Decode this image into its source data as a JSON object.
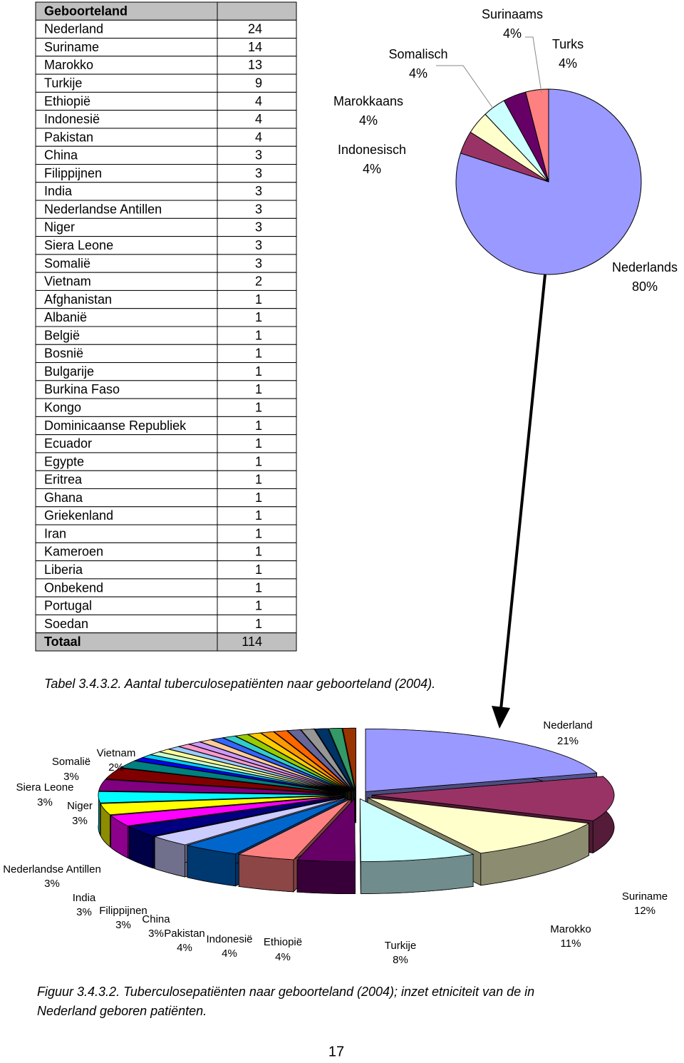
{
  "table": {
    "header": "Geboorteland",
    "rows": [
      [
        "Nederland",
        24
      ],
      [
        "Suriname",
        14
      ],
      [
        "Marokko",
        13
      ],
      [
        "Turkije",
        9
      ],
      [
        "Ethiopië",
        4
      ],
      [
        "Indonesië",
        4
      ],
      [
        "Pakistan",
        4
      ],
      [
        "China",
        3
      ],
      [
        "Filippijnen",
        3
      ],
      [
        "India",
        3
      ],
      [
        "Nederlandse Antillen",
        3
      ],
      [
        "Niger",
        3
      ],
      [
        "Siera Leone",
        3
      ],
      [
        "Somalië",
        3
      ],
      [
        "Vietnam",
        2
      ],
      [
        "Afghanistan",
        1
      ],
      [
        "Albanië",
        1
      ],
      [
        "België",
        1
      ],
      [
        "Bosnië",
        1
      ],
      [
        "Bulgarije",
        1
      ],
      [
        "Burkina Faso",
        1
      ],
      [
        "Kongo",
        1
      ],
      [
        "Dominicaanse Republiek",
        1
      ],
      [
        "Ecuador",
        1
      ],
      [
        "Egypte",
        1
      ],
      [
        "Eritrea",
        1
      ],
      [
        "Ghana",
        1
      ],
      [
        "Griekenland",
        1
      ],
      [
        "Iran",
        1
      ],
      [
        "Kameroen",
        1
      ],
      [
        "Liberia",
        1
      ],
      [
        "Onbekend",
        1
      ],
      [
        "Portugal",
        1
      ],
      [
        "Soedan",
        1
      ]
    ],
    "total": [
      "Totaal",
      114
    ]
  },
  "table_caption": "Tabel 3.4.3.2. Aantal tuberculosepatiënten naar geboorteland (2004).",
  "chart_data": [
    {
      "type": "pie",
      "categories": [
        "Nederlands",
        "Indonesisch",
        "Marokkaans",
        "Somalisch",
        "Surinaams",
        "Turks"
      ],
      "values": [
        80,
        4,
        4,
        4,
        4,
        4
      ],
      "value_labels": [
        "80%",
        "4%",
        "4%",
        "4%",
        "4%",
        "4%"
      ],
      "colors": [
        "#9999ff",
        "#993366",
        "#ffffcc",
        "#ccffff",
        "#660066",
        "#ff8080"
      ]
    },
    {
      "type": "pie3d",
      "categories": [
        "Nederland",
        "Suriname",
        "Marokko",
        "Turkije",
        "Ethiopië",
        "Indonesië",
        "Pakistan",
        "China",
        "Filippijnen",
        "India",
        "Nederlandse Antillen",
        "Niger",
        "Siera Leone",
        "Somalië",
        "Vietnam",
        null,
        null,
        null,
        null,
        null,
        null,
        null,
        null,
        null,
        null,
        null,
        null,
        null,
        null,
        null,
        null,
        null,
        null,
        null
      ],
      "values": [
        21,
        12,
        11,
        8,
        4,
        4,
        4,
        3,
        3,
        3,
        3,
        3,
        3,
        3,
        2,
        0.9,
        0.9,
        0.9,
        0.9,
        0.9,
        0.9,
        0.9,
        0.9,
        0.9,
        0.9,
        0.9,
        0.9,
        0.9,
        0.9,
        0.9,
        0.9,
        0.9,
        0.9,
        0.9
      ],
      "value_labels": [
        "21%",
        "12%",
        "11%",
        "8%",
        "4%",
        "4%",
        "4%",
        "3%",
        "3%",
        "3%",
        "3%",
        "3%",
        "3%",
        "3%",
        "2%",
        null,
        null,
        null,
        null,
        null,
        null,
        null,
        null,
        null,
        null,
        null,
        null,
        null,
        null,
        null,
        null,
        null,
        null,
        null
      ],
      "colors": [
        "#9999ff",
        "#993366",
        "#ffffcc",
        "#ccffff",
        "#660066",
        "#ff8080",
        "#0066cc",
        "#ccccff",
        "#000080",
        "#ff00ff",
        "#ffff00",
        "#00ffff",
        "#800080",
        "#800000",
        "#008080",
        "#0000ff",
        "#00ccff",
        "#ccffcc",
        "#ffff99",
        "#99ccff",
        "#ff99cc",
        "#cc99ff",
        "#ffcc99",
        "#3366ff",
        "#33cccc",
        "#99cc00",
        "#ffcc00",
        "#ff9900",
        "#ff6600",
        "#666699",
        "#969696",
        "#003366",
        "#339966",
        "#993300"
      ]
    }
  ],
  "figure_caption": [
    "Figuur 3.4.3.2. Tuberculosepatiënten naar geboorteland (2004); inzet etniciteit van de in",
    "Nederland geboren patiënten."
  ],
  "page_number": "17"
}
